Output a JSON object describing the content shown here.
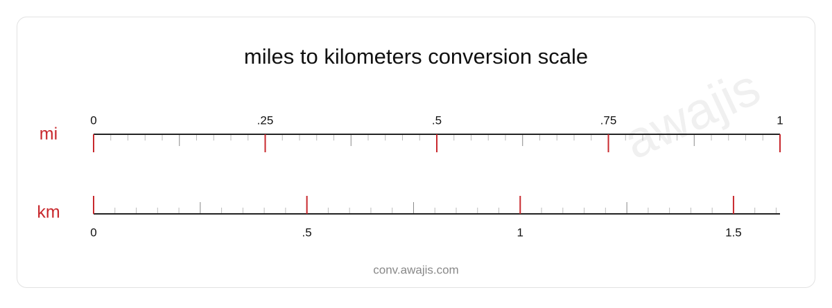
{
  "title": "miles to kilometers conversion scale",
  "watermark": "awajis",
  "footer": "conv.awajis.com",
  "scales": [
    {
      "unit": "mi",
      "range": [
        0,
        1
      ],
      "ticks": [
        0,
        {
          "value": 0.25,
          "label": ".25"
        },
        {
          "value": 0.5,
          "label": ".5"
        },
        {
          "value": 0.75,
          "label": ".75"
        },
        1
      ]
    },
    {
      "unit": "km",
      "range": [
        0,
        1.609
      ],
      "ticks": [
        0,
        {
          "value": 0.5,
          "label": ".5"
        },
        1,
        1.5
      ]
    }
  ]
}
